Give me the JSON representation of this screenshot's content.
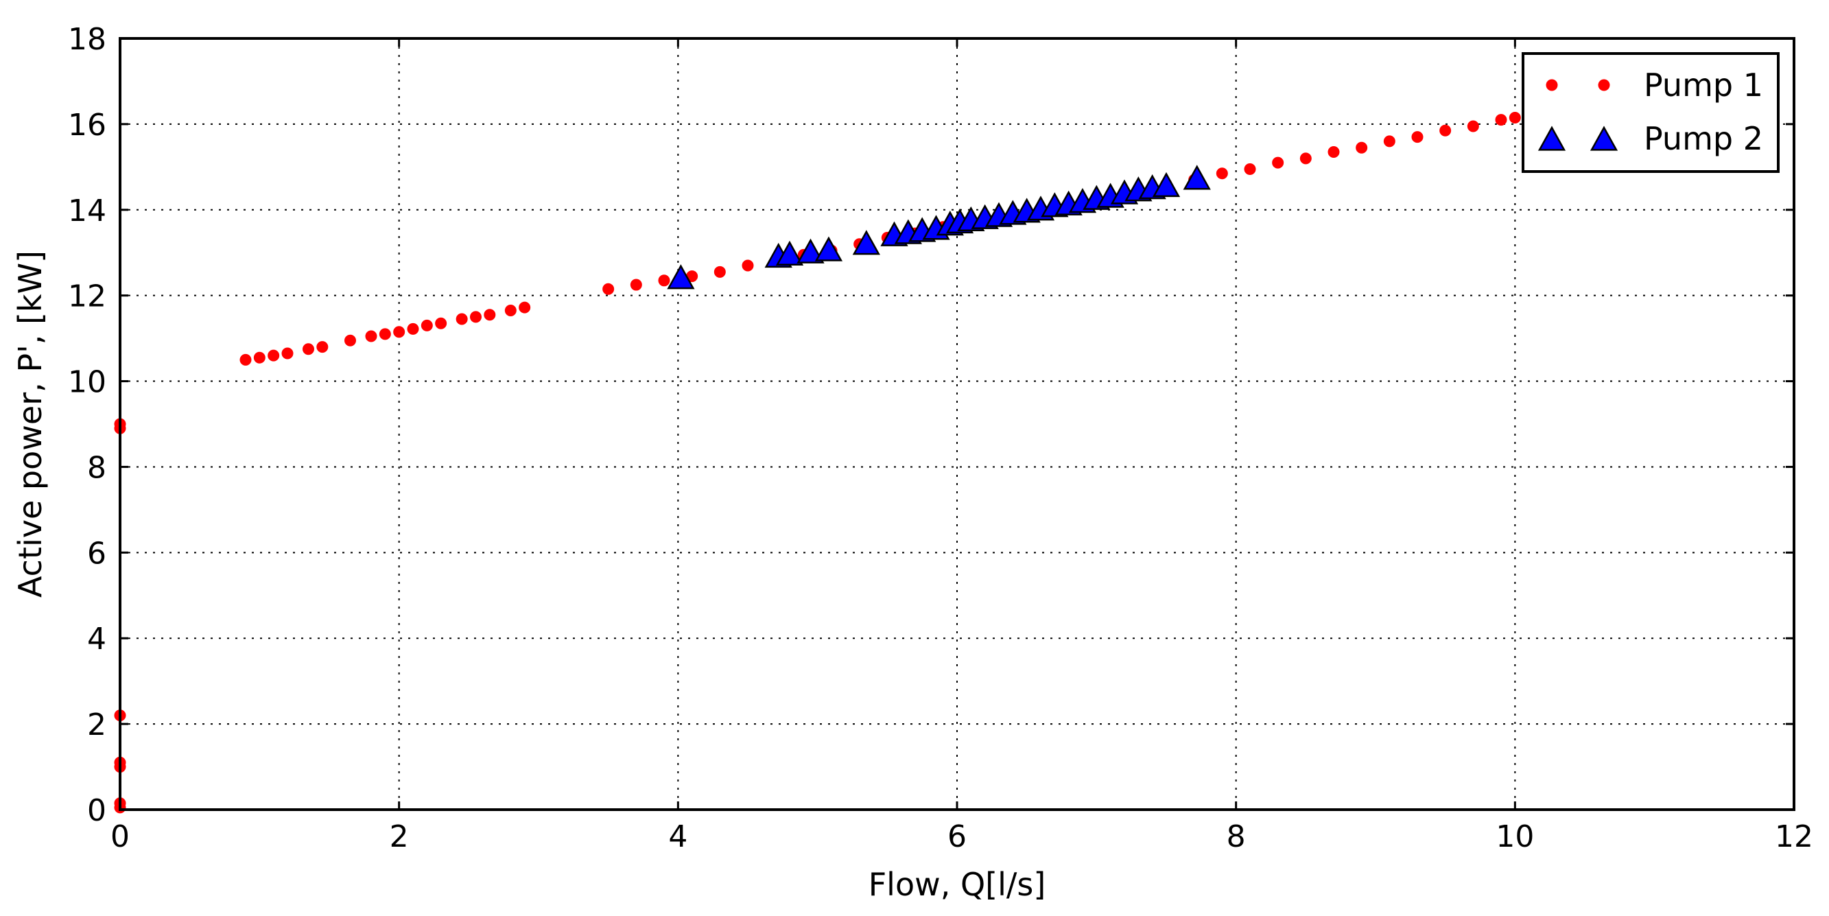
{
  "chart_data": {
    "type": "scatter",
    "xlabel": "Flow, Q[l/s]",
    "ylabel": "Active power, P', [kW]",
    "xlim": [
      0,
      12
    ],
    "ylim": [
      0,
      18
    ],
    "xticks": [
      0,
      2,
      4,
      6,
      8,
      10,
      12
    ],
    "yticks": [
      0,
      2,
      4,
      6,
      8,
      10,
      12,
      14,
      16,
      18
    ],
    "xtick_labels": [
      "0",
      "2",
      "4",
      "6",
      "8",
      "10",
      "12"
    ],
    "ytick_labels": [
      "0",
      "2",
      "4",
      "6",
      "8",
      "10",
      "12",
      "14",
      "16",
      "18"
    ],
    "grid": true,
    "legend_position": "top-right",
    "series": [
      {
        "name": "Pump 1",
        "marker": "circle",
        "color": "#ff0000",
        "points": [
          [
            0.0,
            0.05
          ],
          [
            0.0,
            0.15
          ],
          [
            0.0,
            1.0
          ],
          [
            0.0,
            1.1
          ],
          [
            0.0,
            2.2
          ],
          [
            0.0,
            8.9
          ],
          [
            0.0,
            9.0
          ],
          [
            0.9,
            10.5
          ],
          [
            1.0,
            10.55
          ],
          [
            1.1,
            10.6
          ],
          [
            1.2,
            10.65
          ],
          [
            1.35,
            10.75
          ],
          [
            1.45,
            10.8
          ],
          [
            1.65,
            10.95
          ],
          [
            1.8,
            11.05
          ],
          [
            1.9,
            11.1
          ],
          [
            2.0,
            11.15
          ],
          [
            2.1,
            11.22
          ],
          [
            2.2,
            11.3
          ],
          [
            2.3,
            11.35
          ],
          [
            2.45,
            11.45
          ],
          [
            2.55,
            11.5
          ],
          [
            2.65,
            11.55
          ],
          [
            2.8,
            11.65
          ],
          [
            2.9,
            11.72
          ],
          [
            3.5,
            12.15
          ],
          [
            3.7,
            12.25
          ],
          [
            3.9,
            12.35
          ],
          [
            4.1,
            12.45
          ],
          [
            4.3,
            12.55
          ],
          [
            4.5,
            12.7
          ],
          [
            4.7,
            12.8
          ],
          [
            4.9,
            12.95
          ],
          [
            5.1,
            13.05
          ],
          [
            5.3,
            13.2
          ],
          [
            5.5,
            13.35
          ],
          [
            5.7,
            13.45
          ],
          [
            5.9,
            13.6
          ],
          [
            6.1,
            13.7
          ],
          [
            6.3,
            13.85
          ],
          [
            6.5,
            13.95
          ],
          [
            6.7,
            14.1
          ],
          [
            6.9,
            14.2
          ],
          [
            7.1,
            14.35
          ],
          [
            7.3,
            14.45
          ],
          [
            7.5,
            14.6
          ],
          [
            7.7,
            14.7
          ],
          [
            7.9,
            14.85
          ],
          [
            8.1,
            14.95
          ],
          [
            8.3,
            15.1
          ],
          [
            8.5,
            15.2
          ],
          [
            8.7,
            15.35
          ],
          [
            8.9,
            15.45
          ],
          [
            9.1,
            15.6
          ],
          [
            9.3,
            15.7
          ],
          [
            9.5,
            15.85
          ],
          [
            9.7,
            15.95
          ],
          [
            9.9,
            16.1
          ],
          [
            10.0,
            16.15
          ]
        ]
      },
      {
        "name": "Pump 2",
        "marker": "triangle",
        "color": "#0000ff",
        "points": [
          [
            4.02,
            12.4
          ],
          [
            4.72,
            12.9
          ],
          [
            4.8,
            12.95
          ],
          [
            4.95,
            13.0
          ],
          [
            5.08,
            13.05
          ],
          [
            5.35,
            13.2
          ],
          [
            5.55,
            13.4
          ],
          [
            5.65,
            13.45
          ],
          [
            5.75,
            13.5
          ],
          [
            5.85,
            13.55
          ],
          [
            5.95,
            13.65
          ],
          [
            6.02,
            13.7
          ],
          [
            6.1,
            13.75
          ],
          [
            6.2,
            13.8
          ],
          [
            6.3,
            13.85
          ],
          [
            6.4,
            13.9
          ],
          [
            6.5,
            13.95
          ],
          [
            6.6,
            14.0
          ],
          [
            6.7,
            14.08
          ],
          [
            6.8,
            14.12
          ],
          [
            6.9,
            14.18
          ],
          [
            7.0,
            14.25
          ],
          [
            7.1,
            14.3
          ],
          [
            7.2,
            14.38
          ],
          [
            7.3,
            14.45
          ],
          [
            7.4,
            14.5
          ],
          [
            7.5,
            14.55
          ],
          [
            7.72,
            14.72
          ]
        ]
      }
    ]
  }
}
